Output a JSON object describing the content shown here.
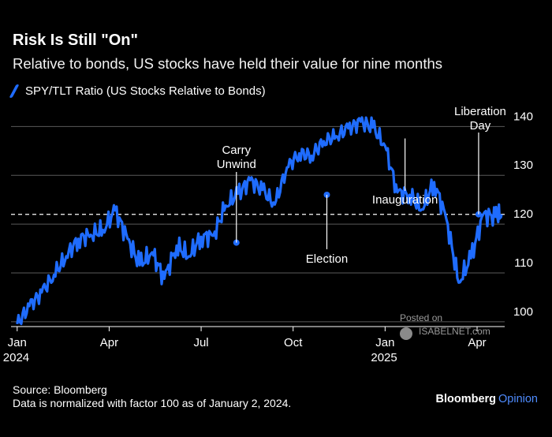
{
  "header": {
    "title": "Risk Is Still \"On\"",
    "subtitle": "Relative to bonds, US stocks have held their value for nine months"
  },
  "footer": {
    "source": "Source: Bloomberg",
    "note": "Data is normalized with factor 100 as of January 2, 2024.",
    "brand_main": "Bloomberg",
    "brand_sub": "Opinion"
  },
  "watermark": {
    "posted": "Posted on",
    "site": "ISABELNET.com"
  },
  "colors": {
    "background": "#000000",
    "line": "#1f6cff",
    "grid": "#5a5a5a",
    "reference": "#ffffff"
  },
  "chart_data": {
    "type": "line",
    "title": "Risk Is Still \"On\"",
    "series": [
      {
        "name": "SPY/TLT Ratio (US Stocks Relative to Bonds)",
        "x": [
          0,
          0.4,
          0.8,
          1.2,
          1.6,
          2,
          2.4,
          2.8,
          3.2,
          3.6,
          4,
          4.4,
          4.8,
          5.2,
          5.6,
          6,
          6.4,
          6.8,
          7.2,
          7.6,
          8,
          8.4,
          8.8,
          9.2,
          9.6,
          10,
          10.4,
          10.8,
          11.2,
          11.6,
          12,
          12.4,
          12.8,
          13.2,
          13.6,
          14,
          14.4,
          14.8,
          15.2,
          15.6,
          15.8
        ],
        "values": [
          99.5,
          103.2,
          106.0,
          109.6,
          113.4,
          117.0,
          117.8,
          118.8,
          122.8,
          117.0,
          111.6,
          114.2,
          108.8,
          115.6,
          113.4,
          117.4,
          117.6,
          123.8,
          126.2,
          129.0,
          127.0,
          124.0,
          131.6,
          134.5,
          134.0,
          137.0,
          138.0,
          139.6,
          141.0,
          139.8,
          136.0,
          126.5,
          126.0,
          123.0,
          128.6,
          121.0,
          108.0,
          113.0,
          122.0,
          121.5,
          122.0
        ],
        "color": "#1f6cff"
      }
    ],
    "x_ticks": [
      {
        "pos": 0,
        "label": "Jan",
        "year": "2024"
      },
      {
        "pos": 3,
        "label": "Apr",
        "year": ""
      },
      {
        "pos": 6,
        "label": "Jul",
        "year": ""
      },
      {
        "pos": 9,
        "label": "Oct",
        "year": ""
      },
      {
        "pos": 12,
        "label": "Jan",
        "year": "2025"
      },
      {
        "pos": 15,
        "label": "Apr",
        "year": ""
      }
    ],
    "y_ticks": [
      100,
      110,
      120,
      130,
      140
    ],
    "ylim": [
      99,
      142
    ],
    "xlim": [
      -0.2,
      15.9
    ],
    "reference_line": {
      "value": 122,
      "style": "dashed"
    },
    "annotations": [
      {
        "name": "carry-unwind",
        "lines": [
          "Carry",
          "Unwind"
        ],
        "x": 7.15,
        "y": 116.2,
        "marker": true
      },
      {
        "name": "election",
        "lines": [
          "Election"
        ],
        "x": 10.1,
        "y": 126.0,
        "marker": true
      },
      {
        "name": "inauguration",
        "lines": [
          "Inauguration"
        ],
        "x": 12.65,
        "y": 138.2,
        "marker": false
      },
      {
        "name": "liberation-day",
        "lines": [
          "Liberation",
          "Day"
        ],
        "x": 15.05,
        "y": 122.0,
        "marker": true
      }
    ],
    "xlabel": "",
    "ylabel": "",
    "grid": true,
    "legend": "top-left"
  }
}
